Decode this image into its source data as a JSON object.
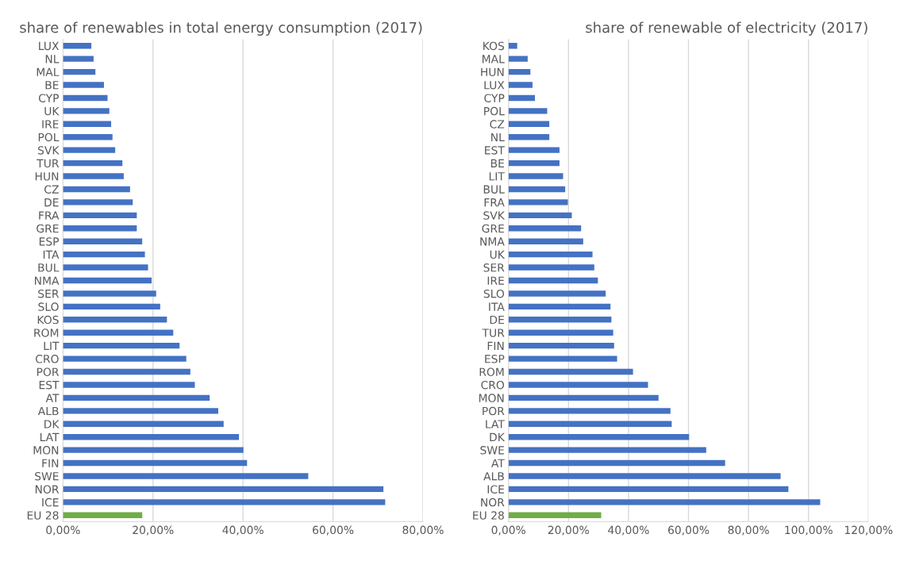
{
  "chart_data": [
    {
      "type": "bar",
      "orientation": "horizontal",
      "title": "share of renewables in total energy consumption (2017)",
      "categories": [
        "LUX",
        "NL",
        "MAL",
        "BE",
        "CYP",
        "UK",
        "IRE",
        "POL",
        "SVK",
        "TUR",
        "HUN",
        "CZ",
        "DE",
        "FRA",
        "GRE",
        "ESP",
        "ITA",
        "BUL",
        "NMA",
        "SER",
        "SLO",
        "KOS",
        "ROM",
        "LIT",
        "CRO",
        "POR",
        "EST",
        "AT",
        "ALB",
        "DK",
        "LAT",
        "MON",
        "FIN",
        "SWE",
        "NOR",
        "ICE",
        "EU 28"
      ],
      "values": [
        6.3,
        6.8,
        7.2,
        9.1,
        9.9,
        10.3,
        10.7,
        11.0,
        11.6,
        13.2,
        13.5,
        14.9,
        15.5,
        16.4,
        16.4,
        17.6,
        18.2,
        18.9,
        19.7,
        20.7,
        21.6,
        23.1,
        24.5,
        25.9,
        27.4,
        28.3,
        29.3,
        32.6,
        34.5,
        35.7,
        39.1,
        40.1,
        40.9,
        54.5,
        71.2,
        71.6,
        17.6
      ],
      "colors": [
        "#4472c4",
        "#4472c4",
        "#4472c4",
        "#4472c4",
        "#4472c4",
        "#4472c4",
        "#4472c4",
        "#4472c4",
        "#4472c4",
        "#4472c4",
        "#4472c4",
        "#4472c4",
        "#4472c4",
        "#4472c4",
        "#4472c4",
        "#4472c4",
        "#4472c4",
        "#4472c4",
        "#4472c4",
        "#4472c4",
        "#4472c4",
        "#4472c4",
        "#4472c4",
        "#4472c4",
        "#4472c4",
        "#4472c4",
        "#4472c4",
        "#4472c4",
        "#4472c4",
        "#4472c4",
        "#4472c4",
        "#4472c4",
        "#4472c4",
        "#4472c4",
        "#4472c4",
        "#4472c4",
        "#70ad47"
      ],
      "xlim": [
        0,
        80
      ],
      "xticks": [
        {
          "value": 0,
          "label": "0,00%"
        },
        {
          "value": 20,
          "label": "20,00%"
        },
        {
          "value": 40,
          "label": "40,00%"
        },
        {
          "value": 60,
          "label": "60,00%"
        },
        {
          "value": 80,
          "label": "80,00%"
        }
      ],
      "grid": "x"
    },
    {
      "type": "bar",
      "orientation": "horizontal",
      "title": "share of renewable of electricity (2017)",
      "categories": [
        "KOS",
        "MAL",
        "HUN",
        "LUX",
        "CYP",
        "POL",
        "CZ",
        "NL",
        "EST",
        "BE",
        "LIT",
        "BUL",
        "FRA",
        "SVK",
        "GRE",
        "NMA",
        "UK",
        "SER",
        "IRE",
        "SLO",
        "ITA",
        "DE",
        "TUR",
        "FIN",
        "ESP",
        "ROM",
        "CRO",
        "MON",
        "POR",
        "LAT",
        "DK",
        "SWE",
        "AT",
        "ALB",
        "ICE",
        "NOR",
        "EU 28"
      ],
      "values": [
        2.9,
        6.4,
        7.3,
        8.0,
        8.8,
        12.9,
        13.6,
        13.6,
        17.0,
        17.0,
        18.2,
        18.9,
        19.8,
        21.1,
        24.2,
        24.9,
        28.0,
        28.6,
        29.8,
        32.4,
        34.0,
        34.3,
        34.9,
        35.2,
        36.2,
        41.5,
        46.5,
        50.0,
        54.0,
        54.4,
        60.2,
        65.9,
        72.2,
        90.7,
        93.3,
        103.9,
        30.9
      ],
      "colors": [
        "#4472c4",
        "#4472c4",
        "#4472c4",
        "#4472c4",
        "#4472c4",
        "#4472c4",
        "#4472c4",
        "#4472c4",
        "#4472c4",
        "#4472c4",
        "#4472c4",
        "#4472c4",
        "#4472c4",
        "#4472c4",
        "#4472c4",
        "#4472c4",
        "#4472c4",
        "#4472c4",
        "#4472c4",
        "#4472c4",
        "#4472c4",
        "#4472c4",
        "#4472c4",
        "#4472c4",
        "#4472c4",
        "#4472c4",
        "#4472c4",
        "#4472c4",
        "#4472c4",
        "#4472c4",
        "#4472c4",
        "#4472c4",
        "#4472c4",
        "#4472c4",
        "#4472c4",
        "#4472c4",
        "#70ad47"
      ],
      "xlim": [
        0,
        120
      ],
      "xticks": [
        {
          "value": 0,
          "label": "0,00%"
        },
        {
          "value": 20,
          "label": "20,00%"
        },
        {
          "value": 40,
          "label": "40,00%"
        },
        {
          "value": 60,
          "label": "60,00%"
        },
        {
          "value": 80,
          "label": "80,00%"
        },
        {
          "value": 100,
          "label": "100,00%"
        },
        {
          "value": 120,
          "label": "120,00%"
        }
      ],
      "grid": "x"
    }
  ]
}
